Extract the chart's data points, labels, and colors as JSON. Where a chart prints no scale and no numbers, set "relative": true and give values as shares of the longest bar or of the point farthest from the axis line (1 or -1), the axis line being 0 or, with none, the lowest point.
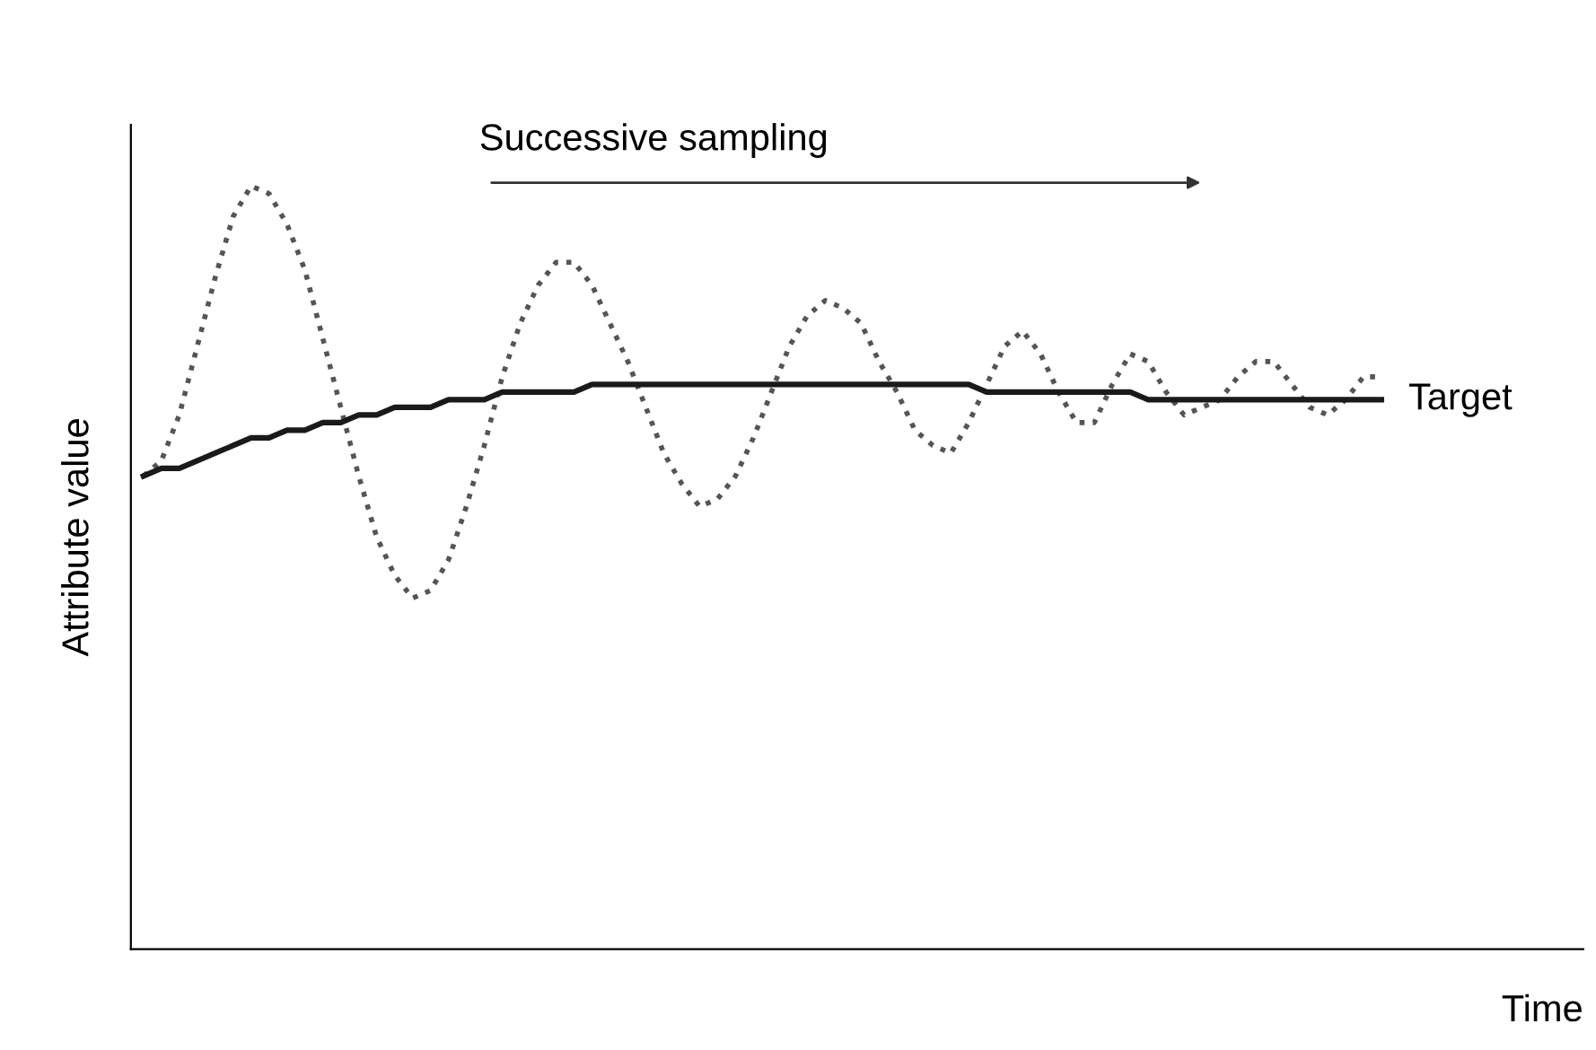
{
  "chart_data": {
    "type": "line",
    "relative": true,
    "xlabel": "Time",
    "ylabel": "Attribute value",
    "annotations": [
      "Successive sampling"
    ],
    "categories": [
      null,
      null,
      null,
      null,
      null,
      null,
      null,
      null,
      null,
      null,
      null,
      null,
      null,
      null,
      null,
      null,
      null,
      null,
      null,
      null,
      null,
      null,
      null,
      null,
      null,
      null,
      null,
      null,
      null,
      null,
      null,
      null,
      null,
      null,
      null,
      null,
      null,
      null,
      null,
      null,
      null,
      null,
      null,
      null,
      null,
      null,
      null,
      null,
      null,
      null,
      null,
      null,
      null,
      null,
      null,
      null,
      null,
      null,
      null,
      null,
      null,
      null,
      null,
      null,
      null,
      null,
      null,
      null,
      null,
      null
    ],
    "series": [
      {
        "color": "#555555",
        "line_style": "dotted",
        "values": [
          0.62,
          0.64,
          0.7,
          0.79,
          0.88,
          0.96,
          1.0,
          0.99,
          0.95,
          0.89,
          0.8,
          0.71,
          0.62,
          0.54,
          0.49,
          0.46,
          0.47,
          0.51,
          0.58,
          0.66,
          0.75,
          0.82,
          0.87,
          0.9,
          0.9,
          0.87,
          0.82,
          0.77,
          0.71,
          0.65,
          0.61,
          0.58,
          0.59,
          0.62,
          0.67,
          0.73,
          0.79,
          0.83,
          0.85,
          0.84,
          0.82,
          0.77,
          0.73,
          0.68,
          0.66,
          0.65,
          0.69,
          0.74,
          0.79,
          0.81,
          0.78,
          0.73,
          0.69,
          0.69,
          0.74,
          0.78,
          0.77,
          0.73,
          0.7,
          0.71,
          0.72,
          0.75,
          0.77,
          0.77,
          0.74,
          0.71,
          0.7,
          0.72,
          0.75,
          0.75
        ]
      },
      {
        "name": "Target",
        "color": "#1a1a1a",
        "line_style": "solid",
        "values": [
          0.62,
          0.63,
          0.63,
          0.64,
          0.65,
          0.66,
          0.67,
          0.67,
          0.68,
          0.68,
          0.69,
          0.69,
          0.7,
          0.7,
          0.71,
          0.71,
          0.71,
          0.72,
          0.72,
          0.72,
          0.73,
          0.73,
          0.73,
          0.73,
          0.73,
          0.74,
          0.74,
          0.74,
          0.74,
          0.74,
          0.74,
          0.74,
          0.74,
          0.74,
          0.74,
          0.74,
          0.74,
          0.74,
          0.74,
          0.74,
          0.74,
          0.74,
          0.74,
          0.74,
          0.74,
          0.74,
          0.74,
          0.73,
          0.73,
          0.73,
          0.73,
          0.73,
          0.73,
          0.73,
          0.73,
          0.73,
          0.72,
          0.72,
          0.72,
          0.72,
          0.72,
          0.72,
          0.72,
          0.72,
          0.72,
          0.72,
          0.72,
          0.72,
          0.72,
          0.72
        ]
      }
    ]
  }
}
